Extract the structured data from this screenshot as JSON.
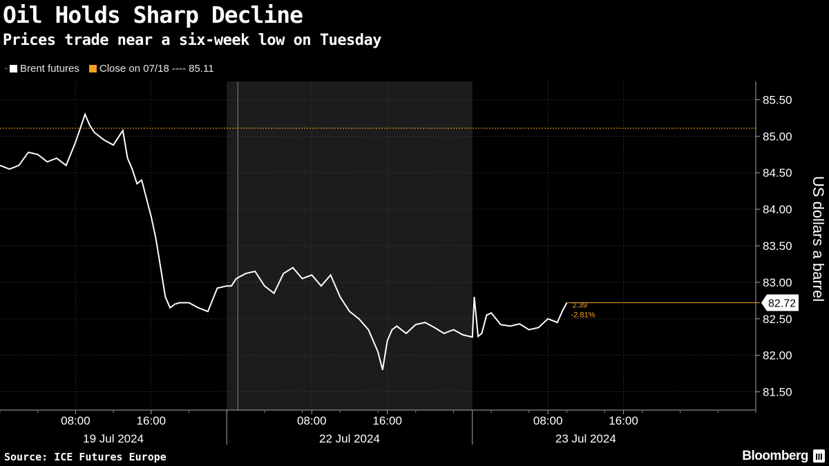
{
  "header": {
    "title": "Oil Holds Sharp Decline",
    "subtitle": "Prices trade near a six-week low on Tuesday"
  },
  "legend": {
    "series_label": "Brent futures",
    "close_label": "Close on 07/18 ---- 85.11"
  },
  "footer": {
    "source": "Source: ICE Futures Europe",
    "brand": "Bloomberg"
  },
  "colors": {
    "background": "#000000",
    "series": "#ffffff",
    "close_line": "#f5a020",
    "shade": "#1c1c1c",
    "grid": "#555555"
  },
  "chart_data": {
    "type": "line",
    "title": "Oil Holds Sharp Decline",
    "subtitle": "Prices trade near a six-week low on Tuesday",
    "ylabel": "US dollars a barrel",
    "ylim": [
      81.25,
      85.75
    ],
    "xlim": [
      1,
      81
    ],
    "y_ticks": [
      81.5,
      82.0,
      82.5,
      83.0,
      83.5,
      84.0,
      84.5,
      85.0,
      85.5
    ],
    "y_tick_labels": [
      "81.50",
      "82.00",
      "82.50",
      "83.00",
      "83.50",
      "84.00",
      "84.50",
      "85.00",
      "85.50"
    ],
    "x_time_ticks": [
      {
        "label": "08:00",
        "x": 9
      },
      {
        "label": "16:00",
        "x": 17
      },
      {
        "label": "08:00",
        "x": 34
      },
      {
        "label": "16:00",
        "x": 42
      },
      {
        "label": "08:00",
        "x": 59
      },
      {
        "label": "16:00",
        "x": 67
      }
    ],
    "x_date_labels": [
      {
        "label": "19 Jul 2024",
        "x": 13
      },
      {
        "label": "22 Jul 2024",
        "x": 38
      },
      {
        "label": "23 Jul 2024",
        "x": 63
      }
    ],
    "day_boundaries": [
      25,
      51
    ],
    "shaded_range": [
      25,
      51
    ],
    "reference_line": {
      "label": "Close on 07/18",
      "value": 85.11
    },
    "last_value": {
      "value": 82.72,
      "label": "82.72",
      "change": "2.39",
      "change_pct": "2.81%"
    },
    "series": [
      {
        "name": "Brent futures",
        "x": [
          1,
          2,
          3,
          4,
          5,
          6,
          7,
          8,
          9,
          10,
          10.5,
          11,
          12,
          13,
          14,
          14.5,
          15,
          15.5,
          16,
          17,
          17.5,
          18,
          18.5,
          19,
          19.5,
          20,
          21,
          22,
          23,
          24,
          25,
          25.5,
          26,
          27,
          28,
          29,
          30,
          31,
          32,
          33,
          34,
          35,
          36,
          37,
          38,
          39,
          40,
          41,
          41.5,
          42,
          42.5,
          43,
          44,
          45,
          46,
          47,
          48,
          49,
          50,
          51,
          51.2,
          51.6,
          52,
          52.5,
          53,
          54,
          55,
          56,
          57,
          58,
          59,
          60,
          60.5,
          61
        ],
        "values": [
          84.6,
          84.55,
          84.6,
          84.78,
          84.75,
          84.65,
          84.7,
          84.6,
          84.92,
          85.3,
          85.15,
          85.05,
          84.95,
          84.88,
          85.08,
          84.7,
          84.55,
          84.35,
          84.4,
          83.9,
          83.6,
          83.2,
          82.8,
          82.65,
          82.7,
          82.72,
          82.72,
          82.65,
          82.6,
          82.92,
          82.95,
          82.95,
          83.05,
          83.12,
          83.15,
          82.95,
          82.85,
          83.12,
          83.2,
          83.05,
          83.1,
          82.95,
          83.1,
          82.8,
          82.6,
          82.5,
          82.35,
          82.05,
          81.8,
          82.2,
          82.35,
          82.4,
          82.3,
          82.42,
          82.45,
          82.38,
          82.3,
          82.35,
          82.28,
          82.25,
          82.8,
          82.26,
          82.3,
          82.55,
          82.58,
          82.42,
          82.4,
          82.43,
          82.35,
          82.38,
          82.5,
          82.45,
          82.6,
          82.72
        ]
      }
    ]
  }
}
